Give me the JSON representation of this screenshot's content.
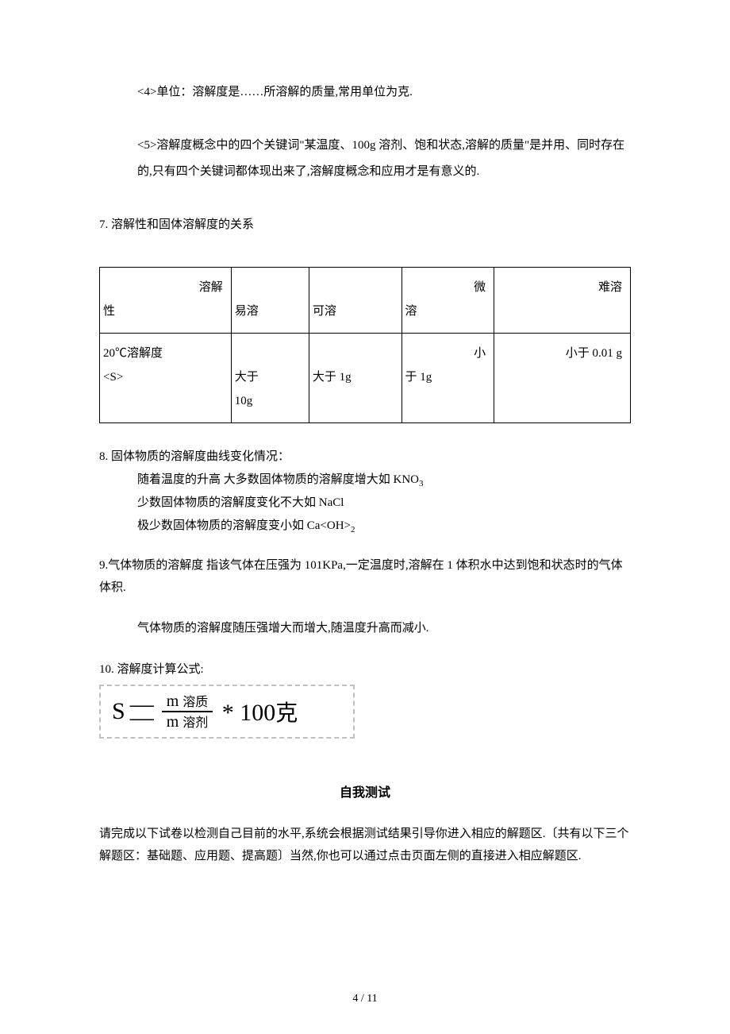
{
  "p4": "<4>单位：溶解度是……所溶解的质量,常用单位为克.",
  "p5": "<5>溶解度概念中的四个关键词\"某温度、100g 溶剂、饱和状态,溶解的质量\"是并用、同时存在的,只有四个关键词都体现出来了,溶解度概念和应用才是有意义的.",
  "s7": "7. 溶解性和固体溶解度的关系",
  "table": {
    "r1": {
      "c1a": "溶解",
      "c1b": "性",
      "c2": "易溶",
      "c3": "可溶",
      "c4a": "微",
      "c4b": "溶",
      "c5": "难溶"
    },
    "r2": {
      "c1a": "20℃溶解度",
      "c1b": "<S>",
      "c2a": "大于",
      "c2b": "10g",
      "c3": "大于 1g",
      "c4a": "小",
      "c4b": "于 1g",
      "c5": "小于 0.01 g"
    }
  },
  "s8": {
    "title": "8. 固体物质的溶解度曲线变化情况：",
    "l1a": "随着温度的升高 大多数固体物质的溶解度增大如 KNO",
    "l1s": "3",
    "l2": "少数固体物质的溶解度变化不大如 NaCl",
    "l3a": "极少数固体物质的溶解度变小如 Ca<OH>",
    "l3s": "2"
  },
  "s9a": "9.气体物质的溶解度 指该气体在压强为 101KPa,一定温度时,溶解在 1 体积水中达到饱和状态时的气体体积.",
  "s9b": "气体物质的溶解度随压强增大而增大,随温度升高而减小.",
  "s10": "10. 溶解度计算公式:",
  "formula": {
    "S": "S",
    "m": "m",
    "top": "溶质",
    "bot": "溶剂",
    "tail_ast": "* 100",
    "tail_cn": "克"
  },
  "selfTestTitle": "自我测试",
  "footer": "请完成以下试卷以检测自己目前的水平,系统会根据测试结果引导你进入相应的解题区.〔共有以下三个解题区：基础题、应用题、提高题〕当然,你也可以通过点击页面左侧的直接进入相应解题区.",
  "pageNum": "4 / 11"
}
